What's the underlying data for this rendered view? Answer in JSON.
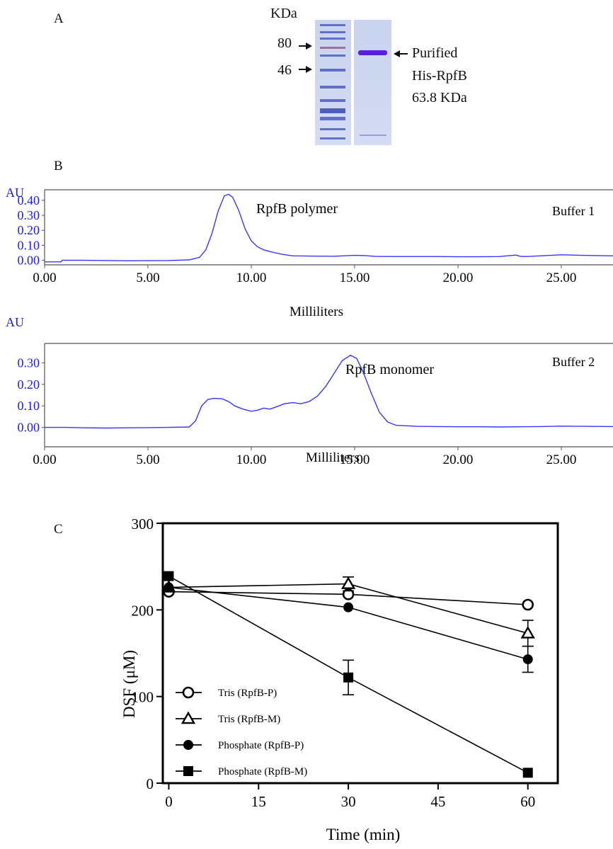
{
  "panel_a": {
    "letter": "A",
    "unit_label": "KDa",
    "markers": [
      {
        "label": "80"
      },
      {
        "label": "46"
      }
    ],
    "band_label": [
      "Purified",
      "His-RpfB",
      "63.8 KDa"
    ]
  },
  "panel_b": {
    "letter": "B"
  },
  "panel_c": {
    "letter": "C"
  },
  "colors": {
    "trace": "#3535ff",
    "axis_text_blue": "#1a1aff"
  },
  "chart_data": [
    {
      "type": "line",
      "id": "chromatogram-buffer-1",
      "y_unit_label": "AU",
      "xlabel": "Milliliters",
      "xlim": [
        0,
        27.5
      ],
      "ylim": [
        -0.03,
        0.47
      ],
      "x_ticks": [
        "0.00",
        "5.00",
        "10.00",
        "15.00",
        "20.00",
        "25.00"
      ],
      "x_tick_values": [
        0,
        5,
        10,
        15,
        20,
        25
      ],
      "y_ticks": [
        "0.00",
        "0.10",
        "0.20",
        "0.30",
        "0.40"
      ],
      "y_tick_values": [
        0,
        0.1,
        0.2,
        0.3,
        0.4
      ],
      "annotations": [
        "RpfB polymer",
        "Buffer 1"
      ],
      "series": [
        {
          "x": [
            0,
            0.8,
            0.85,
            2,
            4,
            6,
            7,
            7.5,
            7.8,
            8.1,
            8.4,
            8.7,
            8.9,
            9.1,
            9.4,
            9.7,
            10.0,
            10.3,
            10.6,
            11,
            11.5,
            12,
            13,
            14,
            15,
            15.5,
            16,
            17,
            18,
            19,
            20,
            21,
            22,
            22.8,
            23,
            23.3,
            24,
            25,
            26,
            27.5
          ],
          "y": [
            -0.01,
            -0.01,
            0.0,
            0.0,
            -0.003,
            -0.001,
            0.003,
            0.02,
            0.07,
            0.18,
            0.33,
            0.43,
            0.44,
            0.42,
            0.33,
            0.21,
            0.13,
            0.09,
            0.07,
            0.055,
            0.04,
            0.03,
            0.028,
            0.027,
            0.033,
            0.032,
            0.026,
            0.025,
            0.025,
            0.025,
            0.024,
            0.024,
            0.025,
            0.035,
            0.027,
            0.025,
            0.03,
            0.037,
            0.033,
            0.03
          ]
        }
      ]
    },
    {
      "type": "line",
      "id": "chromatogram-buffer-2",
      "y_unit_label": "AU",
      "xlabel": "Milliliters",
      "xlim": [
        0,
        27.5
      ],
      "ylim": [
        -0.09,
        0.39
      ],
      "x_ticks": [
        "0.00",
        "5.00",
        "10.00",
        "15.00",
        "20.00",
        "25.00"
      ],
      "x_tick_values": [
        0,
        5,
        10,
        15,
        20,
        25
      ],
      "y_ticks": [
        "0.00",
        "0.10",
        "0.20",
        "0.30"
      ],
      "y_tick_values": [
        0,
        0.1,
        0.2,
        0.3
      ],
      "annotations": [
        "RpfB monomer",
        "Buffer 2"
      ],
      "series": [
        {
          "x": [
            0,
            1,
            2,
            3,
            4,
            5,
            6,
            7,
            7.3,
            7.6,
            7.9,
            8.2,
            8.6,
            8.9,
            9.2,
            9.6,
            10.0,
            10.3,
            10.6,
            10.9,
            11.2,
            11.6,
            12.0,
            12.4,
            12.8,
            13.2,
            13.6,
            14.0,
            14.4,
            14.8,
            15.1,
            15.4,
            15.8,
            16.2,
            16.6,
            17,
            18,
            19,
            20,
            21,
            22,
            23,
            24,
            25,
            26,
            27.5
          ],
          "y": [
            0.0,
            0.0,
            -0.002,
            -0.003,
            -0.002,
            -0.001,
            0.0,
            0.002,
            0.03,
            0.1,
            0.13,
            0.135,
            0.133,
            0.12,
            0.1,
            0.085,
            0.075,
            0.08,
            0.09,
            0.085,
            0.095,
            0.11,
            0.115,
            0.11,
            0.12,
            0.145,
            0.19,
            0.25,
            0.31,
            0.335,
            0.32,
            0.26,
            0.16,
            0.07,
            0.025,
            0.01,
            0.005,
            0.004,
            0.003,
            0.003,
            0.002,
            0.003,
            0.004,
            0.006,
            0.005,
            0.004
          ]
        }
      ]
    },
    {
      "type": "line",
      "id": "dsf-time-course",
      "xlabel": "Time (min)",
      "ylabel": "DSF (μM)",
      "xlim": [
        -1,
        65
      ],
      "ylim": [
        0,
        300
      ],
      "x_ticks": [
        "0",
        "15",
        "30",
        "45",
        "60"
      ],
      "x_tick_values": [
        0,
        15,
        30,
        45,
        60
      ],
      "y_ticks": [
        "0",
        "100",
        "200",
        "300"
      ],
      "y_tick_values": [
        0,
        100,
        200,
        300
      ],
      "legend_position": "bottom-left",
      "series": [
        {
          "name": "Tris (RpfB-P)",
          "marker": "open-circle",
          "x": [
            0,
            30,
            60
          ],
          "y": [
            221,
            218,
            206
          ],
          "err": [
            0,
            0,
            0
          ]
        },
        {
          "name": "Tris (RpfB-M)",
          "marker": "open-triangle",
          "x": [
            0,
            30,
            60
          ],
          "y": [
            226,
            230,
            173
          ],
          "err": [
            0,
            8,
            15
          ]
        },
        {
          "name": "Phosphate  (RpfB-P)",
          "marker": "filled-circle",
          "x": [
            0,
            30,
            60
          ],
          "y": [
            226,
            203,
            143
          ],
          "err": [
            0,
            0,
            15
          ]
        },
        {
          "name": "Phosphate (RpfB-M)",
          "marker": "filled-square",
          "x": [
            0,
            30,
            60
          ],
          "y": [
            239,
            122,
            12
          ],
          "err": [
            0,
            20,
            0
          ]
        }
      ]
    }
  ]
}
